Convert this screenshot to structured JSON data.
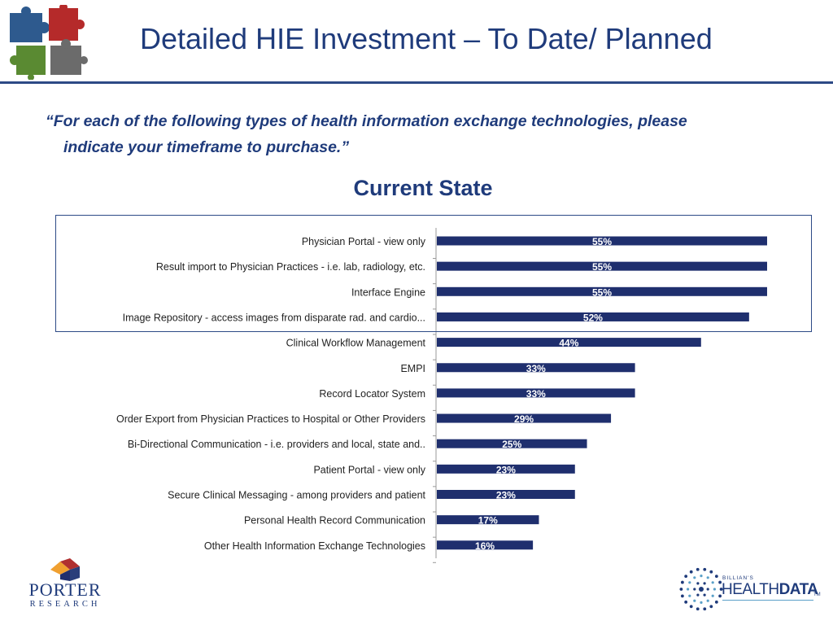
{
  "slide": {
    "title": "Detailed HIE Investment – To Date/ Planned",
    "question_line1": "“For each of the following types of health information exchange technologies, please",
    "question_line2": "indicate your timeframe to purchase.”"
  },
  "logos": {
    "puzzle": "puzzle-pieces-logo",
    "porter_name": "PORTER",
    "porter_sub": "RESEARCH",
    "hd_small": "BILLIAN'S",
    "hd_main_a": "HEALTH",
    "hd_main_b": "DATA",
    "hd_tm": "TM"
  },
  "colors": {
    "bar": "#1f2f6e",
    "title": "#1f3b7b",
    "puzzle": [
      "#2e5a8e",
      "#b52a2a",
      "#5a8a32",
      "#6b6b6b"
    ]
  },
  "chart_data": {
    "type": "bar",
    "orientation": "horizontal",
    "title": "Current State",
    "xlim": [
      0,
      100
    ],
    "categories": [
      "Physician Portal - view only",
      "Result import to Physician Practices - i.e. lab, radiology, etc.",
      "Interface Engine",
      "Image Repository - access images from disparate rad. and cardio...",
      "Clinical Workflow Management",
      "EMPI",
      "Record Locator System",
      "Order Export from Physician Practices to Hospital or Other Providers",
      "Bi-Directional Communication - i.e. providers and local, state and..",
      "Patient Portal - view only",
      "Secure Clinical Messaging - among providers and patient",
      "Personal Health Record Communication",
      "Other Health Information Exchange Technologies"
    ],
    "values": [
      55,
      55,
      55,
      52,
      44,
      33,
      33,
      29,
      25,
      23,
      23,
      17,
      16
    ],
    "data_labels": [
      "55%",
      "55%",
      "55%",
      "52%",
      "44%",
      "33%",
      "33%",
      "29%",
      "25%",
      "23%",
      "23%",
      "17%",
      "16%"
    ],
    "highlighted_categories": [
      0,
      1,
      2,
      3
    ],
    "grid": false,
    "legend": "none"
  }
}
